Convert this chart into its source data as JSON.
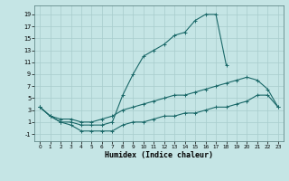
{
  "xlabel": "Humidex (Indice chaleur)",
  "bg_color": "#c5e5e5",
  "line_color": "#1a6868",
  "grid_color": "#a8cccc",
  "xlim": [
    -0.5,
    23.5
  ],
  "ylim": [
    -2.2,
    20.5
  ],
  "xticks": [
    0,
    1,
    2,
    3,
    4,
    5,
    6,
    7,
    8,
    9,
    10,
    11,
    12,
    13,
    14,
    15,
    16,
    17,
    18,
    19,
    20,
    21,
    22,
    23
  ],
  "yticks": [
    -1,
    1,
    3,
    5,
    7,
    9,
    11,
    13,
    15,
    17,
    19
  ],
  "line_top_x": [
    0,
    1,
    2,
    3,
    4,
    5,
    6,
    7,
    8,
    9,
    10,
    11,
    12,
    13,
    14,
    15,
    16,
    17,
    18
  ],
  "line_top_y": [
    3.5,
    2.0,
    1.0,
    1.0,
    0.5,
    0.5,
    0.5,
    1.0,
    5.5,
    9.0,
    12.0,
    13.0,
    14.0,
    15.5,
    16.0,
    18.0,
    19.0,
    19.0,
    10.5
  ],
  "line_mid_x": [
    0,
    1,
    2,
    3,
    4,
    5,
    6,
    7,
    8,
    9,
    10,
    11,
    12,
    13,
    14,
    15,
    16,
    17,
    18,
    19,
    20,
    21,
    22,
    23
  ],
  "line_mid_y": [
    3.5,
    2.0,
    1.5,
    1.5,
    1.0,
    1.0,
    1.5,
    2.0,
    3.0,
    3.5,
    4.0,
    4.5,
    5.0,
    5.5,
    5.5,
    6.0,
    6.5,
    7.0,
    7.5,
    8.0,
    8.5,
    8.0,
    6.5,
    3.5
  ],
  "line_bot_x": [
    0,
    1,
    2,
    3,
    4,
    5,
    6,
    7,
    8,
    9,
    10,
    11,
    12,
    13,
    14,
    15,
    16,
    17,
    18,
    19,
    20,
    21,
    22,
    23
  ],
  "line_bot_y": [
    3.5,
    2.0,
    1.0,
    0.5,
    -0.5,
    -0.5,
    -0.5,
    -0.5,
    0.5,
    1.0,
    1.0,
    1.5,
    2.0,
    2.0,
    2.5,
    2.5,
    3.0,
    3.5,
    3.5,
    4.0,
    4.5,
    5.5,
    5.5,
    3.5
  ]
}
